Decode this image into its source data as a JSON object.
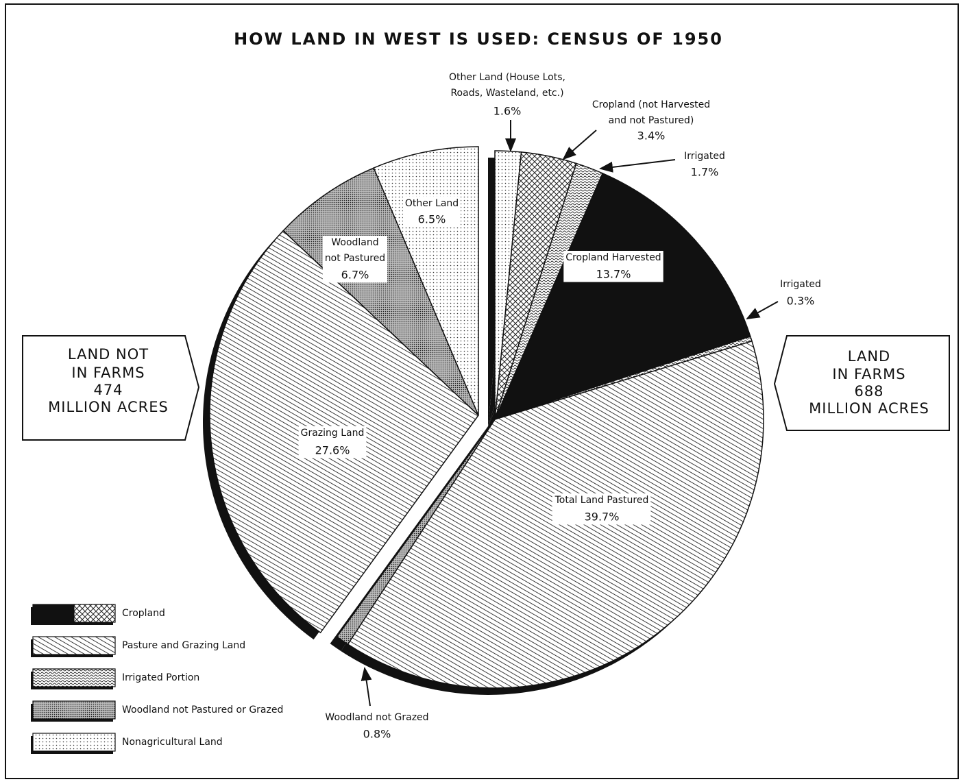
{
  "chart_data": {
    "type": "pie",
    "title": "HOW LAND IN WEST IS USED:  CENSUS OF 1950",
    "categories": [
      "Other Land (House Lots,\nRoads, Wasteland, etc.)",
      "Cropland (not Harvested\nand not Pastured)",
      "Irrigated",
      "Cropland Harvested",
      "Irrigated",
      "Total Land Pastured",
      "Woodland not Grazed",
      "Grazing Land",
      "Woodland\nnot Pastured",
      "Other Land"
    ],
    "values": [
      1.6,
      3.4,
      1.7,
      13.7,
      0.3,
      39.7,
      0.8,
      27.6,
      6.7,
      6.5
    ],
    "value_labels": [
      "1.6%",
      "3.4%",
      "1.7%",
      "13.7%",
      "0.3%",
      "39.7%",
      "0.8%",
      "27.6%",
      "6.7%",
      "6.5%"
    ],
    "patterns": [
      "dots",
      "crosshatch",
      "wave",
      "solid",
      "wave",
      "diagonal",
      "stipple",
      "diagonal",
      "stipple",
      "dots"
    ],
    "annotations": [
      {
        "lines": [
          "LAND NOT",
          "IN FARMS",
          "474",
          "MILLION ACRES"
        ]
      },
      {
        "lines": [
          "LAND",
          "IN FARMS",
          "688",
          "MILLION ACRES"
        ]
      }
    ],
    "legend": [
      {
        "label": "Cropland",
        "pattern": [
          "solid",
          "crosshatch"
        ]
      },
      {
        "label": "Pasture and Grazing Land",
        "pattern": [
          "diagonal"
        ]
      },
      {
        "label": "Irrigated Portion",
        "pattern": [
          "wave"
        ]
      },
      {
        "label": "Woodland not Pastured or Grazed",
        "pattern": [
          "stipple"
        ]
      },
      {
        "label": "Nonagricultural Land",
        "pattern": [
          "dots"
        ]
      }
    ]
  }
}
